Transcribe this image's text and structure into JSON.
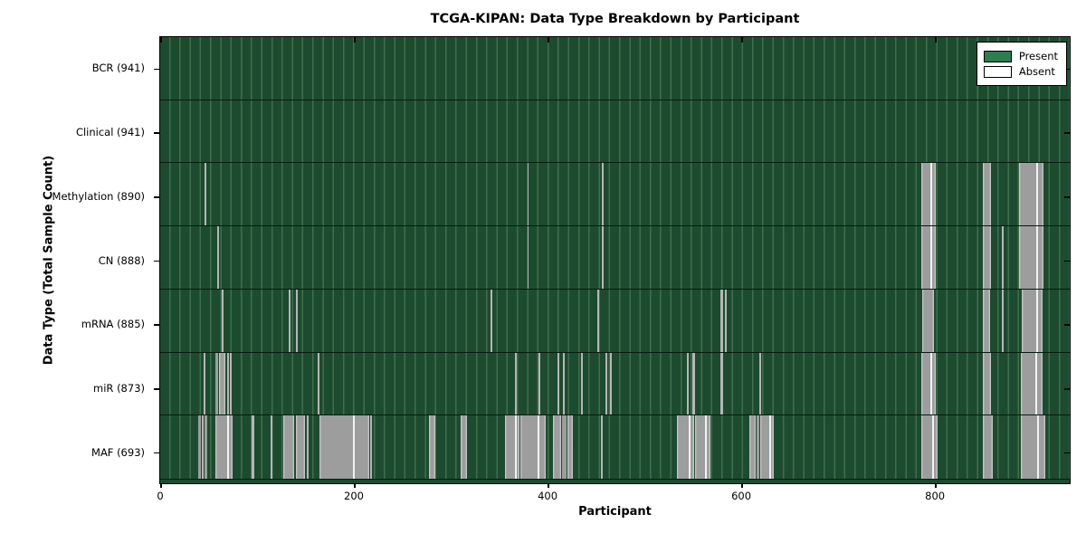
{
  "title": "TCGA-KIPAN: Data Type Breakdown by Participant",
  "colors": {
    "present_legend": "#2e7d4e",
    "present_rendered": "#1d4b2f",
    "present_stripe_line": "#3f6f4e",
    "absent_fill": "#9d9d9d",
    "absent_edge": "#d2d2d2",
    "absent_accent": "#f2f2f2",
    "axis": "#000000",
    "background": "#ffffff"
  },
  "chart_data": {
    "type": "heatmap",
    "title": "TCGA-KIPAN: Data Type Breakdown by Participant",
    "xlabel": "Participant",
    "ylabel": "Data Type (Total Sample Count)",
    "x_range": [
      0,
      941
    ],
    "x_ticks": [
      0,
      200,
      400,
      600,
      800
    ],
    "grid": false,
    "legend_position": "upper right",
    "legend_items": [
      {
        "label": "Present",
        "color": "#2e7d4e"
      },
      {
        "label": "Absent",
        "color": "#ffffff"
      }
    ],
    "rows": [
      {
        "name": "BCR",
        "label": "BCR (941)",
        "present_count": 941,
        "absent_intervals": []
      },
      {
        "name": "Clinical",
        "label": "Clinical (941)",
        "present_count": 941,
        "absent_intervals": []
      },
      {
        "name": "Methylation",
        "label": "Methylation (890)",
        "present_count": 890,
        "absent_intervals": [
          [
            46,
            47
          ],
          [
            380,
            381
          ],
          [
            457,
            458
          ],
          [
            787,
            802
          ],
          [
            851,
            860
          ],
          [
            889,
            914
          ]
        ]
      },
      {
        "name": "CN",
        "label": "CN (888)",
        "present_count": 888,
        "absent_intervals": [
          [
            59,
            61
          ],
          [
            380,
            381
          ],
          [
            457,
            458
          ],
          [
            787,
            802
          ],
          [
            851,
            860
          ],
          [
            871,
            873
          ],
          [
            889,
            914
          ]
        ]
      },
      {
        "name": "mRNA",
        "label": "mRNA (885)",
        "present_count": 885,
        "absent_intervals": [
          [
            64,
            66
          ],
          [
            133,
            135
          ],
          [
            140,
            142
          ],
          [
            342,
            344
          ],
          [
            452,
            454
          ],
          [
            580,
            582
          ],
          [
            584,
            586
          ],
          [
            788,
            801
          ],
          [
            851,
            859
          ],
          [
            871,
            873
          ],
          [
            891,
            913
          ]
        ]
      },
      {
        "name": "miR",
        "label": "miR (873)",
        "present_count": 873,
        "absent_intervals": [
          [
            45,
            47
          ],
          [
            57,
            60
          ],
          [
            61,
            67
          ],
          [
            69,
            71
          ],
          [
            72,
            74
          ],
          [
            163,
            165
          ],
          [
            367,
            369
          ],
          [
            391,
            393
          ],
          [
            411,
            413
          ],
          [
            417,
            419
          ],
          [
            435,
            437
          ],
          [
            461,
            463
          ],
          [
            465,
            467
          ],
          [
            545,
            547
          ],
          [
            551,
            553
          ],
          [
            580,
            582
          ],
          [
            620,
            622
          ],
          [
            787,
            802
          ],
          [
            851,
            860
          ],
          [
            890,
            913
          ]
        ]
      },
      {
        "name": "MAF",
        "label": "MAF (693)",
        "present_count": 693,
        "absent_intervals": [
          [
            39,
            42
          ],
          [
            43,
            45
          ],
          [
            46,
            49
          ],
          [
            57,
            75
          ],
          [
            95,
            97
          ],
          [
            114,
            116
          ],
          [
            127,
            139
          ],
          [
            140,
            150
          ],
          [
            152,
            154
          ],
          [
            165,
            216
          ],
          [
            217,
            219
          ],
          [
            278,
            285
          ],
          [
            311,
            317
          ],
          [
            357,
            372
          ],
          [
            373,
            399
          ],
          [
            406,
            415
          ],
          [
            416,
            420
          ],
          [
            421,
            427
          ],
          [
            456,
            458
          ],
          [
            535,
            552
          ],
          [
            553,
            569
          ],
          [
            610,
            616
          ],
          [
            617,
            620
          ],
          [
            621,
            635
          ],
          [
            787,
            804
          ],
          [
            851,
            861
          ],
          [
            890,
            916
          ]
        ]
      }
    ]
  }
}
